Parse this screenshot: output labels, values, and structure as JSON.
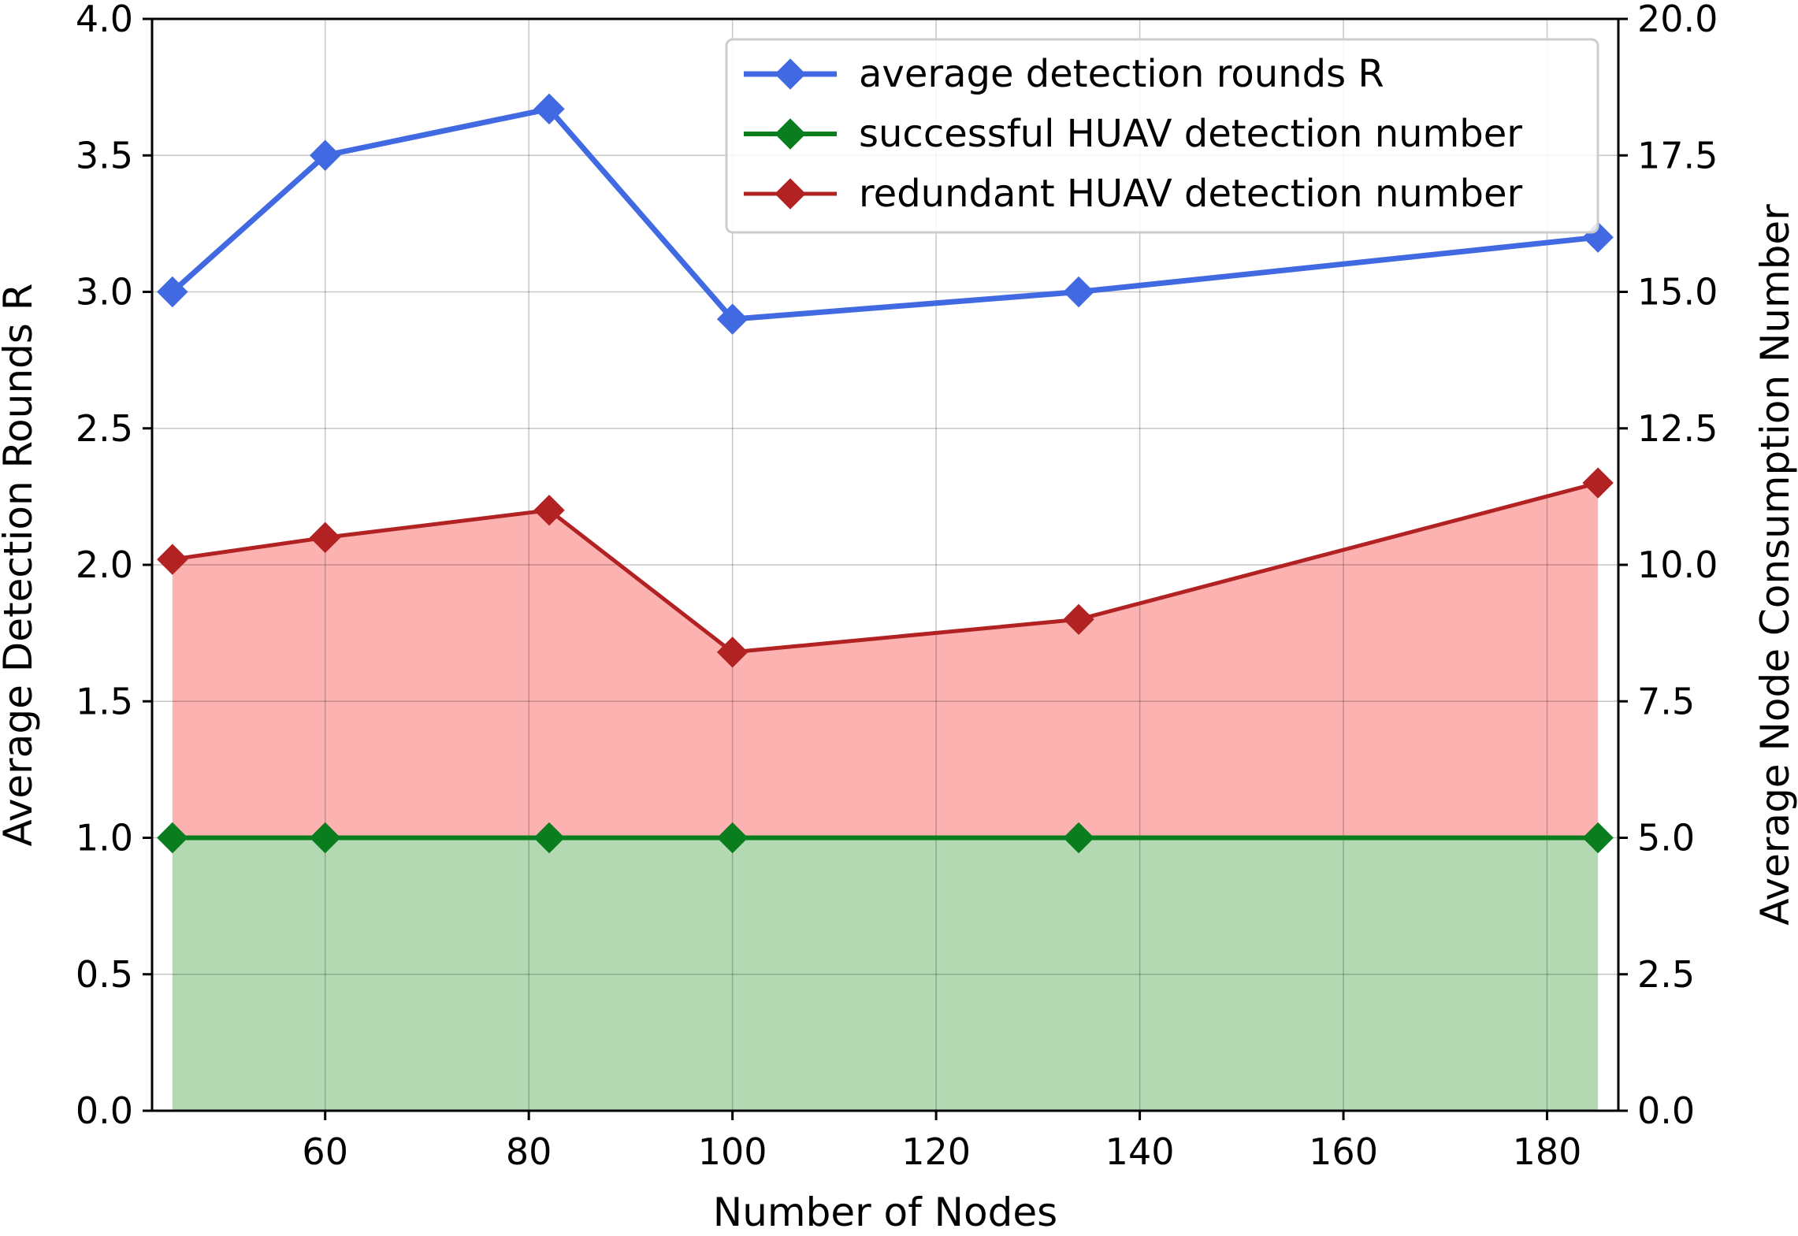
{
  "chart_data": {
    "type": "line",
    "xlabel": "Number of Nodes",
    "ylabel": "Average Detection Rounds R",
    "y2label": "Average Node Consumption Number",
    "xlim": [
      43,
      187
    ],
    "ylim": [
      0,
      4.0
    ],
    "y2lim": [
      0,
      20.0
    ],
    "xticks": [
      "60",
      "80",
      "100",
      "120",
      "140",
      "160",
      "180"
    ],
    "yticks": [
      "0.0",
      "0.5",
      "1.0",
      "1.5",
      "2.0",
      "2.5",
      "3.0",
      "3.5",
      "4.0"
    ],
    "y2ticks": [
      "0.0",
      "2.5",
      "5.0",
      "7.5",
      "10.0",
      "12.5",
      "15.0",
      "17.5",
      "20.0"
    ],
    "grid": true,
    "legend_position": "top-right",
    "x": [
      45,
      60,
      82,
      100,
      134,
      185
    ],
    "series": [
      {
        "name": "average detection rounds R",
        "axis": "left",
        "color": "#4169e1",
        "marker": "diamond",
        "values": [
          3.0,
          3.5,
          3.67,
          2.9,
          3.0,
          3.2
        ]
      },
      {
        "name": "successful HUAV detection number",
        "axis": "left",
        "color": "#0a7d1e",
        "marker": "diamond",
        "fill": "#b3d9b3",
        "values": [
          1.0,
          1.0,
          1.0,
          1.0,
          1.0,
          1.0
        ]
      },
      {
        "name": "redundant HUAV detection number",
        "axis": "left",
        "color": "#b22222",
        "marker": "diamond",
        "fill": "#fdb2b2",
        "values": [
          2.02,
          2.1,
          2.2,
          1.68,
          1.8,
          2.3
        ]
      }
    ]
  }
}
